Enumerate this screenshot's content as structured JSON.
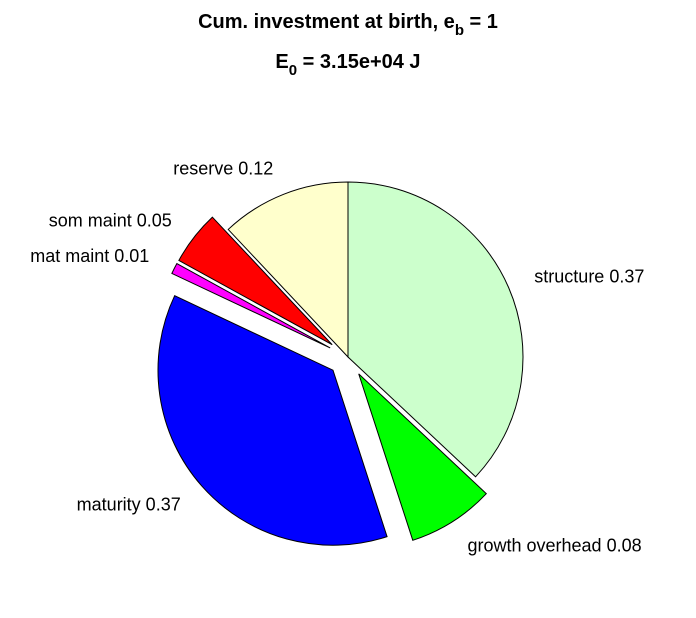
{
  "title": {
    "line1_main": "Cum. investment at birth, e",
    "line1_sub": "b",
    "line1_tail": " = 1",
    "line2_main": "E",
    "line2_sub": "0",
    "line2_tail": " = 3.15e+04 J"
  },
  "chart_data": {
    "type": "pie",
    "title": "Cum. investment at birth, e_b = 1 / E_0 = 3.15e+04 J",
    "direction": "clockwise",
    "start": "top",
    "slices": [
      {
        "name": "structure",
        "label": "structure 0.37",
        "value": 0.37,
        "color": "#ccffcc",
        "exploded": false
      },
      {
        "name": "growth overhead",
        "label": "growth overhead 0.08",
        "value": 0.08,
        "color": "#00ff00",
        "exploded": true
      },
      {
        "name": "maturity",
        "label": "maturity 0.37",
        "value": 0.37,
        "color": "#0000ff",
        "exploded": true
      },
      {
        "name": "mat maint",
        "label": "mat maint 0.01",
        "value": 0.01,
        "color": "#ff00ff",
        "exploded": true
      },
      {
        "name": "som maint",
        "label": "som maint 0.05",
        "value": 0.05,
        "color": "#ff0000",
        "exploded": true
      },
      {
        "name": "reserve",
        "label": "reserve 0.12",
        "value": 0.12,
        "color": "#ffffcc",
        "exploded": false
      }
    ]
  }
}
